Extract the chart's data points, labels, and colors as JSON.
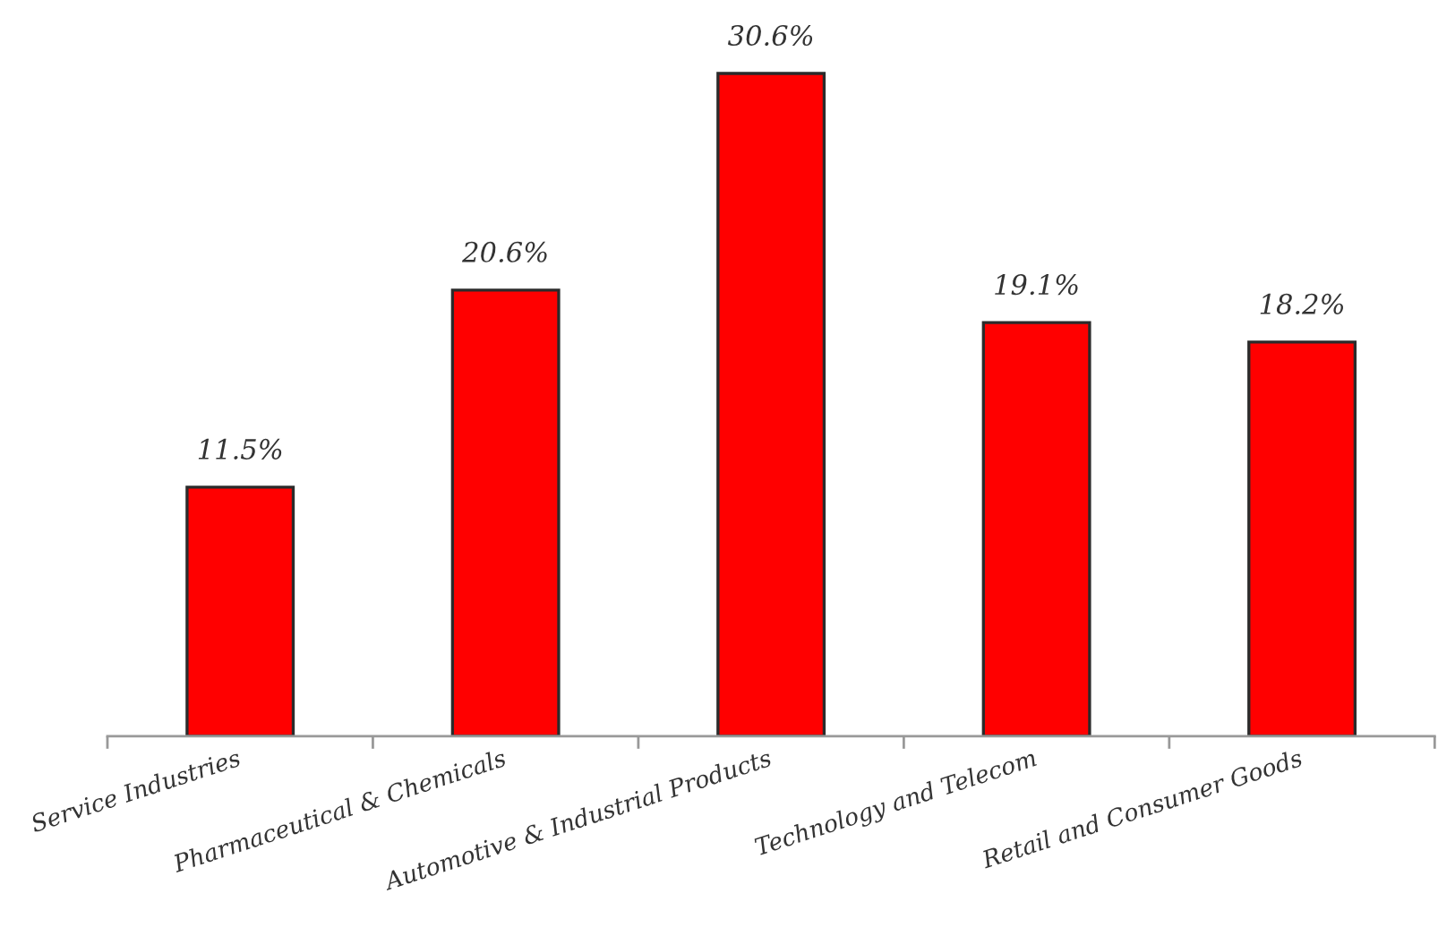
{
  "chart_data": {
    "type": "bar",
    "categories": [
      "Service Industries",
      "Pharmaceutical & Chemicals",
      "Automotive & Industrial Products",
      "Technology and Telecom",
      "Retail and Consumer Goods"
    ],
    "values": [
      11.5,
      20.6,
      30.6,
      19.1,
      18.2
    ],
    "value_labels": [
      "11.5%",
      "20.6%",
      "30.6%",
      "19.1%",
      "18.2%"
    ],
    "color": "#ff0000",
    "tick_labels": "x"
  }
}
